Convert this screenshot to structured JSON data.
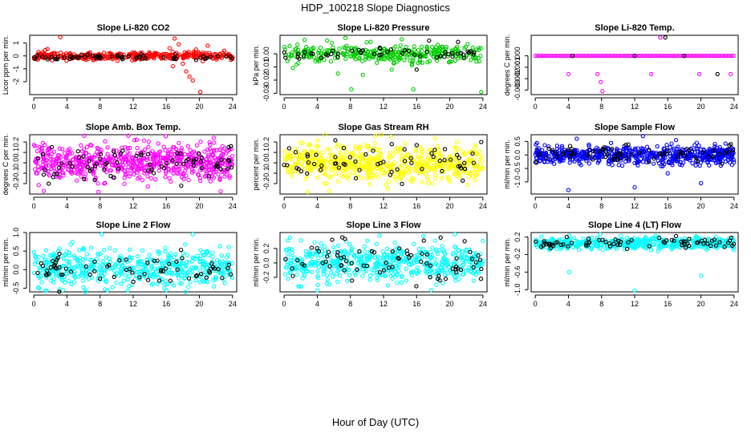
{
  "figure": {
    "title": "HDP_100218  Slope Diagnostics",
    "xlabel": "Hour of Day (UTC)"
  },
  "colors": {
    "background": "#ffffff",
    "axis": "#000000",
    "overlay_series": "#000000"
  },
  "chart_data": [
    {
      "id": "co2",
      "type": "scatter",
      "title": "Slope Li-820 CO2",
      "ylabel": "Licor ppm per min.",
      "color": "#ff0000",
      "xlim": [
        -0.5,
        24.5
      ],
      "ylim": [
        -3.0,
        1.6
      ],
      "xticks": [
        0,
        4,
        8,
        12,
        16,
        20,
        24
      ],
      "xtick_labels": [
        "0",
        "4",
        "8",
        "12",
        "16",
        "20",
        "24"
      ],
      "yticks": [
        -2,
        -1,
        0,
        1
      ],
      "ytick_labels": [
        "-2",
        "-1",
        "0",
        "1"
      ],
      "series": [
        {
          "name": "primary",
          "n": 360,
          "center": 0.0,
          "spread": 0.15,
          "seed": 11,
          "outliers": [
            [
              3.2,
              1.45
            ],
            [
              6.3,
              -0.3
            ],
            [
              16.4,
              0.6
            ],
            [
              16.8,
              -0.8
            ],
            [
              17.0,
              1.35
            ],
            [
              17.5,
              0.9
            ],
            [
              18.0,
              -0.6
            ],
            [
              18.4,
              -1.2
            ],
            [
              18.7,
              0.3
            ],
            [
              18.8,
              -1.6
            ],
            [
              19.2,
              -1.9
            ],
            [
              19.6,
              0.5
            ],
            [
              20.1,
              -2.8
            ],
            [
              20.4,
              -0.4
            ],
            [
              21.0,
              0.8
            ],
            [
              21.6,
              -0.2
            ],
            [
              23.0,
              0.4
            ]
          ]
        },
        {
          "name": "overlay",
          "n": 60,
          "center": -0.1,
          "spread": 0.12,
          "seed": 12,
          "outliers": []
        }
      ]
    },
    {
      "id": "pressure",
      "type": "scatter",
      "title": "Slope Li-820 Pressure",
      "ylabel": "kPa per min.",
      "color": "#00cc00",
      "xlim": [
        -0.5,
        24.5
      ],
      "ylim": [
        -0.031,
        0.014
      ],
      "xticks": [
        0,
        4,
        8,
        12,
        16,
        20,
        24
      ],
      "xtick_labels": [
        "0",
        "4",
        "8",
        "12",
        "16",
        "20",
        "24"
      ],
      "yticks": [
        0.0,
        -0.01,
        -0.02,
        -0.03
      ],
      "ytick_labels": [
        "0.00",
        "-0.01",
        "-0.02",
        "-0.03"
      ],
      "series": [
        {
          "name": "primary",
          "n": 330,
          "center": 0.0,
          "spread": 0.0035,
          "seed": 21,
          "outliers": [
            [
              8.1,
              -0.027
            ],
            [
              15.6,
              -0.027
            ],
            [
              23.8,
              -0.029
            ],
            [
              6.5,
              -0.015
            ],
            [
              9.5,
              -0.016
            ],
            [
              13.0,
              -0.012
            ],
            [
              7.4,
              0.012
            ],
            [
              14.2,
              0.011
            ]
          ]
        },
        {
          "name": "overlay",
          "n": 50,
          "center": 0.0,
          "spread": 0.002,
          "seed": 22,
          "outliers": [
            [
              16.0,
              -0.012
            ],
            [
              21.0,
              0.009
            ],
            [
              17.5,
              0.01
            ]
          ]
        }
      ]
    },
    {
      "id": "temp",
      "type": "scatter",
      "title": "Slope Li-820 Temp.",
      "ylabel": "degrees C per min.",
      "color": "#ff00ff",
      "xlim": [
        -0.5,
        24.5
      ],
      "ylim": [
        -0.0034,
        0.0018
      ],
      "xticks": [
        0,
        4,
        8,
        12,
        16,
        20,
        24
      ],
      "xtick_labels": [
        "0",
        "4",
        "8",
        "12",
        "16",
        "20",
        "24"
      ],
      "yticks": [
        0.0,
        -0.001,
        -0.002,
        -0.003
      ],
      "ytick_labels": [
        "0.000",
        "-0.001",
        "-0.002",
        "-0.003"
      ],
      "series": [
        {
          "name": "primary",
          "n": 0,
          "center": 0.0,
          "spread": 0.0,
          "seed": 31,
          "grid_y": 0.0,
          "grid_step": 0.25,
          "outliers": [
            [
              4.0,
              -0.0016
            ],
            [
              7.5,
              -0.0016
            ],
            [
              7.9,
              -0.0023
            ],
            [
              8.1,
              -0.0031
            ],
            [
              14.0,
              -0.0016
            ],
            [
              15.1,
              0.0016
            ],
            [
              19.8,
              -0.0016
            ],
            [
              23.6,
              -0.0016
            ]
          ]
        },
        {
          "name": "overlay",
          "n": 0,
          "center": 0.0,
          "spread": 0.0,
          "seed": 32,
          "outliers": [
            [
              15.7,
              0.0016
            ],
            [
              22.0,
              -0.0016
            ],
            [
              4.5,
              0.0
            ],
            [
              12.0,
              0.0
            ],
            [
              18.0,
              0.0
            ]
          ]
        }
      ]
    },
    {
      "id": "ambtemp",
      "type": "scatter",
      "title": "Slope Amb. Box Temp.",
      "ylabel": "degrees C per min.",
      "color": "#ff00ff",
      "xlim": [
        -0.5,
        24.5
      ],
      "ylim": [
        -0.3,
        0.27
      ],
      "xticks": [
        0,
        4,
        8,
        12,
        16,
        20,
        24
      ],
      "xtick_labels": [
        "0",
        "4",
        "8",
        "12",
        "16",
        "20",
        "24"
      ],
      "yticks": [
        -0.2,
        -0.1,
        0.0,
        0.1,
        0.2
      ],
      "ytick_labels": [
        "-0.2",
        "-0.1",
        "0.0",
        "0.1",
        "0.2"
      ],
      "series": [
        {
          "name": "primary",
          "n": 650,
          "center": 0.0,
          "spread": 0.085,
          "seed": 41,
          "outliers": [
            [
              1.2,
              -0.27
            ],
            [
              7.8,
              -0.28
            ],
            [
              6.1,
              0.26
            ]
          ]
        },
        {
          "name": "overlay",
          "n": 75,
          "center": 0.0,
          "spread": 0.08,
          "seed": 42,
          "outliers": [
            [
              1.8,
              -0.2
            ],
            [
              17.8,
              -0.22
            ],
            [
              23.8,
              0.16
            ]
          ]
        }
      ]
    },
    {
      "id": "rh",
      "type": "scatter",
      "title": "Slope Gas Stream RH",
      "ylabel": "percent per min.",
      "color": "#ffff00",
      "xlim": [
        -0.5,
        24.5
      ],
      "ylim": [
        -0.3,
        0.27
      ],
      "xticks": [
        0,
        4,
        8,
        12,
        16,
        20,
        24
      ],
      "xtick_labels": [
        "0",
        "4",
        "8",
        "12",
        "16",
        "20",
        "24"
      ],
      "yticks": [
        -0.2,
        -0.1,
        0.0,
        0.1,
        0.2
      ],
      "ytick_labels": [
        "-0.2",
        "-0.1",
        "0.0",
        "0.1",
        "0.2"
      ],
      "series": [
        {
          "name": "primary",
          "n": 600,
          "center": 0.0,
          "spread": 0.085,
          "seed": 51,
          "outliers": [
            [
              2.8,
              -0.28
            ],
            [
              11.0,
              0.26
            ],
            [
              12.5,
              -0.25
            ]
          ]
        },
        {
          "name": "overlay",
          "n": 60,
          "center": 0.0,
          "spread": 0.08,
          "seed": 52,
          "outliers": [
            [
              23.8,
              0.2
            ],
            [
              13.0,
              0.18
            ],
            [
              16.0,
              0.17
            ]
          ]
        }
      ]
    },
    {
      "id": "sampleflow",
      "type": "scatter",
      "title": "Slope Sample Flow",
      "ylabel": "ml/min per min.",
      "color": "#0000ff",
      "xlim": [
        -0.5,
        24.5
      ],
      "ylim": [
        -1.45,
        0.75
      ],
      "xticks": [
        0,
        4,
        8,
        12,
        16,
        20,
        24
      ],
      "xtick_labels": [
        "0",
        "4",
        "8",
        "12",
        "16",
        "20",
        "24"
      ],
      "yticks": [
        0.5,
        0.0,
        -0.5,
        -1.0
      ],
      "ytick_labels": [
        "0.5",
        "0.0",
        "-0.5",
        "-1.0"
      ],
      "series": [
        {
          "name": "primary",
          "n": 620,
          "center": 0.0,
          "spread": 0.17,
          "seed": 61,
          "outliers": [
            [
              4.0,
              -1.3
            ],
            [
              12.0,
              -1.2
            ],
            [
              20.0,
              -1.05
            ],
            [
              5.0,
              0.6
            ],
            [
              13.0,
              0.7
            ],
            [
              17.0,
              0.55
            ],
            [
              19.5,
              0.45
            ]
          ]
        },
        {
          "name": "overlay",
          "n": 70,
          "center": 0.05,
          "spread": 0.15,
          "seed": 62,
          "outliers": [
            [
              23.6,
              0.4
            ]
          ]
        }
      ]
    },
    {
      "id": "line2",
      "type": "scatter",
      "title": "Slope Line 2 Flow",
      "ylabel": "ml/min per min.",
      "color": "#00ffff",
      "xlim": [
        -0.5,
        24.5
      ],
      "ylim": [
        -0.6,
        1.0
      ],
      "xticks": [
        0,
        4,
        8,
        12,
        16,
        20,
        24
      ],
      "xtick_labels": [
        "0",
        "4",
        "8",
        "12",
        "16",
        "20",
        "24"
      ],
      "yticks": [
        -0.5,
        0.0,
        0.5,
        1.0
      ],
      "ytick_labels": [
        "-0.5",
        "0.0",
        "0.5",
        "1.0"
      ],
      "series": [
        {
          "name": "primary",
          "n": 520,
          "center": 0.05,
          "spread": 0.24,
          "seed": 71,
          "outliers": [
            [
              3.5,
              -0.55
            ],
            [
              8.2,
              0.95
            ],
            [
              16.0,
              -0.55
            ],
            [
              19.2,
              0.95
            ]
          ]
        },
        {
          "name": "overlay",
          "n": 70,
          "center": 0.0,
          "spread": 0.18,
          "seed": 72,
          "outliers": []
        }
      ]
    },
    {
      "id": "line3",
      "type": "scatter",
      "title": "Slope Line 3 Flow",
      "ylabel": "ml/min per min.",
      "color": "#00ffff",
      "xlim": [
        -0.5,
        24.5
      ],
      "ylim": [
        -0.4,
        0.42
      ],
      "xticks": [
        0,
        4,
        8,
        12,
        16,
        20,
        24
      ],
      "xtick_labels": [
        "0",
        "4",
        "8",
        "12",
        "16",
        "20",
        "24"
      ],
      "yticks": [
        -0.2,
        0.0,
        0.2
      ],
      "ytick_labels": [
        "-0.2",
        "0.0",
        "0.2"
      ],
      "series": [
        {
          "name": "primary",
          "n": 540,
          "center": 0.0,
          "spread": 0.13,
          "seed": 81,
          "outliers": [
            [
              4.0,
              -0.38
            ],
            [
              11.5,
              0.38
            ],
            [
              16.8,
              0.37
            ]
          ]
        },
        {
          "name": "overlay",
          "n": 70,
          "center": 0.0,
          "spread": 0.13,
          "seed": 82,
          "outliers": [
            [
              5.8,
              0.32
            ],
            [
              18.9,
              0.35
            ],
            [
              21.8,
              0.3
            ],
            [
              18.8,
              -0.24
            ],
            [
              19.5,
              -0.22
            ]
          ]
        }
      ]
    },
    {
      "id": "line4",
      "type": "scatter",
      "title": "Slope Line 4 (LT) Flow",
      "ylabel": "ml/min per min.",
      "color": "#00ffff",
      "xlim": [
        -0.5,
        24.5
      ],
      "ylim": [
        -1.05,
        0.3
      ],
      "xticks": [
        0,
        4,
        8,
        12,
        16,
        20,
        24
      ],
      "xtick_labels": [
        "0",
        "4",
        "8",
        "12",
        "16",
        "20",
        "24"
      ],
      "yticks": [
        0.2,
        -0.2,
        -0.6,
        -1.0
      ],
      "ytick_labels": [
        "0.2",
        "-0.2",
        "-0.6",
        "-1.0"
      ],
      "series": [
        {
          "name": "primary",
          "n": 480,
          "center": 0.05,
          "spread": 0.07,
          "seed": 91,
          "outliers": [
            [
              4.1,
              -0.6
            ],
            [
              12.0,
              -1.02
            ],
            [
              20.0,
              -0.68
            ]
          ]
        },
        {
          "name": "overlay",
          "n": 70,
          "center": 0.05,
          "spread": 0.06,
          "seed": 92,
          "outliers": [
            [
              3.8,
              0.2
            ],
            [
              17.0,
              0.22
            ],
            [
              23.8,
              0.0
            ]
          ]
        }
      ]
    }
  ]
}
